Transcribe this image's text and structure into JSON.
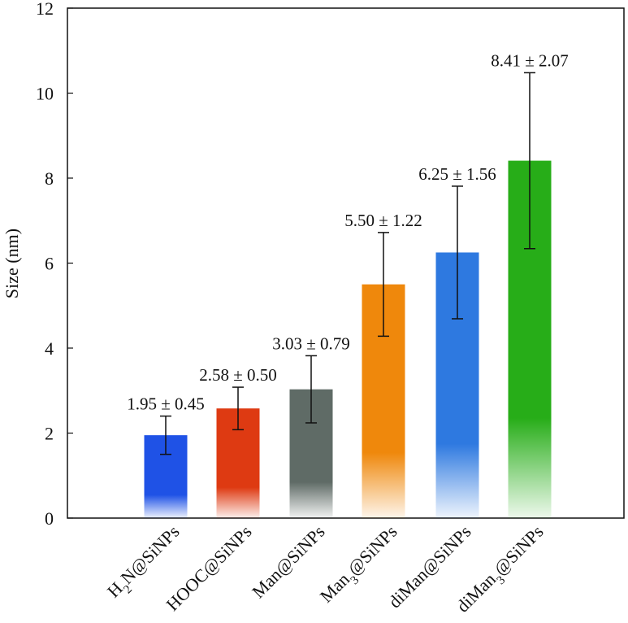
{
  "chart_data": {
    "type": "bar",
    "title": "",
    "xlabel": "",
    "ylabel": "Size (nm)",
    "ylim": [
      0,
      12
    ],
    "yticks": [
      0,
      2,
      4,
      6,
      8,
      10,
      12
    ],
    "grid": false,
    "legend": "none",
    "categories": [
      {
        "label": "H2N@SiNPs",
        "main": "H",
        "sub": "2",
        "rest": "N@SiNPs"
      },
      {
        "label": "HOOC@SiNPs",
        "main": "HOOC@SiNPs",
        "sub": "",
        "rest": ""
      },
      {
        "label": "Man@SiNPs",
        "main": "Man@SiNPs",
        "sub": "",
        "rest": ""
      },
      {
        "label": "Man3@SiNPs",
        "main": "Man",
        "sub": "3",
        "rest": "@SiNPs"
      },
      {
        "label": "diMan@SiNPs",
        "main": "diMan@SiNPs",
        "sub": "",
        "rest": ""
      },
      {
        "label": "diMan3@SiNPs",
        "main": "diMan",
        "sub": "3",
        "rest": "@SiNPs"
      }
    ],
    "values": [
      1.95,
      2.58,
      3.03,
      5.5,
      6.25,
      8.41
    ],
    "errors": [
      0.45,
      0.5,
      0.79,
      1.22,
      1.56,
      2.07
    ],
    "data_labels": [
      "1.95 ± 0.45",
      "2.58 ± 0.50",
      "3.03 ± 0.79",
      "5.50 ± 1.22",
      "6.25 ± 1.56",
      "8.41 ± 2.07"
    ],
    "colors": [
      "#1f52e6",
      "#de3a12",
      "#5f6b66",
      "#ef880c",
      "#2e79e0",
      "#27ad18"
    ]
  }
}
